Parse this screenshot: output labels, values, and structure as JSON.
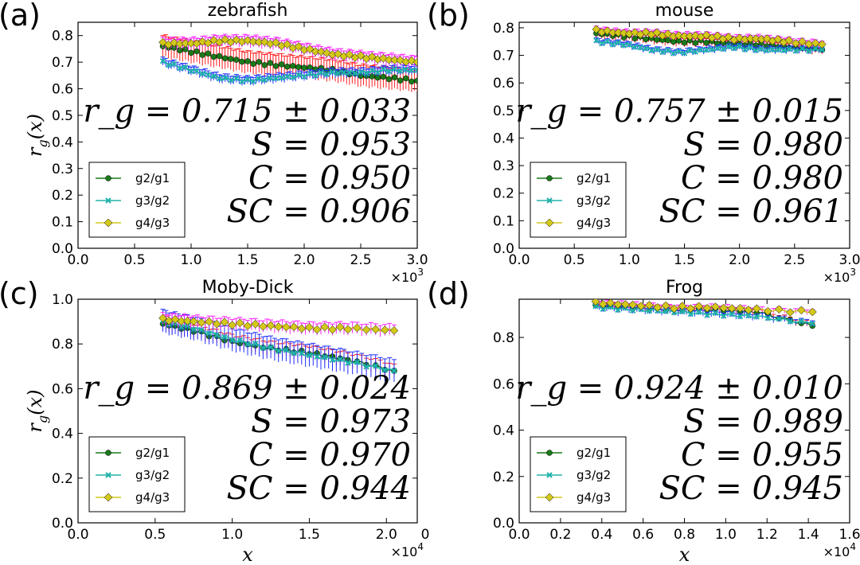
{
  "figure": {
    "colors": {
      "g2_g1": "#1a7a1a",
      "g3_g2": "#20b2aa",
      "g4_g3": "#d4c81a",
      "err_g2_g1": "#ff2020",
      "err_g3_g2": "#2030ff",
      "err_g4_g3": "#ff20ff"
    }
  },
  "chart_data": [
    {
      "type": "line",
      "panel_letter": "(a)",
      "title": "zebrafish",
      "xlabel": "",
      "ylabel": "r_g(x)",
      "ylabel_parts": {
        "base": "r",
        "sub": "g",
        "rest": "(x)"
      },
      "xlim": [
        0.0,
        3.0
      ],
      "ylim": [
        0.0,
        0.85
      ],
      "xticks": [
        0.0,
        0.5,
        1.0,
        1.5,
        2.0,
        2.5,
        3.0
      ],
      "yticks": [
        0.0,
        0.1,
        0.2,
        0.3,
        0.4,
        0.5,
        0.6,
        0.7,
        0.8
      ],
      "tick_decimals_x": 1,
      "tick_decimals_y": 1,
      "x_multiplier": "×10",
      "x_multiplier_exp": "3",
      "stats": {
        "rg": "r_g = 0.715 ± 0.033",
        "S": "S = 0.953",
        "C": "C = 0.950",
        "SC": "SC = 0.906"
      },
      "legend": [
        "g2/g1",
        "g3/g2",
        "g4/g3"
      ],
      "legend_position": "lower-left",
      "series": [
        {
          "name": "g2/g1",
          "x": [
            0.75,
            1.0,
            1.25,
            1.5,
            1.75,
            2.0,
            2.25,
            2.5,
            2.75,
            3.0
          ],
          "y": [
            0.76,
            0.74,
            0.72,
            0.7,
            0.69,
            0.68,
            0.67,
            0.65,
            0.64,
            0.63
          ],
          "err": 0.04
        },
        {
          "name": "g3/g2",
          "x": [
            0.75,
            1.0,
            1.25,
            1.5,
            1.75,
            2.0,
            2.25,
            2.5,
            2.75,
            3.0
          ],
          "y": [
            0.7,
            0.67,
            0.64,
            0.63,
            0.64,
            0.65,
            0.66,
            0.66,
            0.67,
            0.67
          ],
          "err": 0.015
        },
        {
          "name": "g4/g3",
          "x": [
            0.75,
            1.0,
            1.25,
            1.5,
            1.75,
            2.0,
            2.25,
            2.5,
            2.75,
            3.0
          ],
          "y": [
            0.77,
            0.77,
            0.78,
            0.78,
            0.77,
            0.75,
            0.73,
            0.72,
            0.71,
            0.7
          ],
          "err": 0.02
        }
      ]
    },
    {
      "type": "line",
      "panel_letter": "(b)",
      "title": "mouse",
      "xlabel": "",
      "ylabel": "",
      "xlim": [
        0.0,
        3.0
      ],
      "ylim": [
        0.0,
        0.82
      ],
      "xticks": [
        0.0,
        0.5,
        1.0,
        1.5,
        2.0,
        2.5,
        3.0
      ],
      "yticks": [
        0.0,
        0.1,
        0.2,
        0.3,
        0.4,
        0.5,
        0.6,
        0.7,
        0.8
      ],
      "tick_decimals_x": 1,
      "tick_decimals_y": 1,
      "x_multiplier": "×10",
      "x_multiplier_exp": "3",
      "stats": {
        "rg": "r_g = 0.757 ± 0.015",
        "S": "S = 0.980",
        "C": "C = 0.980",
        "SC": "SC = 0.961"
      },
      "legend": [
        "g2/g1",
        "g3/g2",
        "g4/g3"
      ],
      "legend_position": "lower-left",
      "series": [
        {
          "name": "g2/g1",
          "x": [
            0.7,
            0.95,
            1.2,
            1.45,
            1.7,
            1.95,
            2.2,
            2.45,
            2.75
          ],
          "y": [
            0.78,
            0.77,
            0.76,
            0.75,
            0.75,
            0.74,
            0.74,
            0.73,
            0.72
          ],
          "err": 0.015
        },
        {
          "name": "g3/g2",
          "x": [
            0.7,
            0.95,
            1.2,
            1.45,
            1.7,
            1.95,
            2.2,
            2.45,
            2.75
          ],
          "y": [
            0.75,
            0.74,
            0.72,
            0.71,
            0.72,
            0.73,
            0.72,
            0.72,
            0.72
          ],
          "err": 0.01
        },
        {
          "name": "g4/g3",
          "x": [
            0.7,
            0.95,
            1.2,
            1.45,
            1.7,
            1.95,
            2.2,
            2.45,
            2.75
          ],
          "y": [
            0.79,
            0.78,
            0.78,
            0.77,
            0.77,
            0.76,
            0.76,
            0.75,
            0.74
          ],
          "err": 0.012
        }
      ]
    },
    {
      "type": "line",
      "panel_letter": "(c)",
      "title": "Moby-Dick",
      "xlabel": "x",
      "ylabel": "r_g(x)",
      "ylabel_parts": {
        "base": "r",
        "sub": "g",
        "rest": "(x)"
      },
      "xlim": [
        0.0,
        2.2
      ],
      "ylim": [
        0.0,
        1.0
      ],
      "xticks": [
        0.0,
        0.5,
        1.0,
        1.5,
        2.0
      ],
      "xtick_extra_label": "0",
      "yticks": [
        0.0,
        0.2,
        0.4,
        0.6,
        0.8,
        1.0
      ],
      "tick_decimals_x": 1,
      "tick_decimals_y": 1,
      "x_multiplier": "×10",
      "x_multiplier_exp": "4",
      "stats": {
        "rg": "r_g = 0.869 ± 0.024",
        "S": "S = 0.973",
        "C": "C = 0.970",
        "SC": "SC = 0.944"
      },
      "legend": [
        "g2/g1",
        "g3/g2",
        "g4/g3"
      ],
      "legend_position": "lower-left",
      "series": [
        {
          "name": "g2/g1",
          "x": [
            0.55,
            0.75,
            1.0,
            1.25,
            1.5,
            1.75,
            2.05
          ],
          "y": [
            0.89,
            0.86,
            0.81,
            0.78,
            0.76,
            0.73,
            0.68
          ],
          "err": 0.03
        },
        {
          "name": "g3/g2",
          "x": [
            0.55,
            0.75,
            1.0,
            1.25,
            1.5,
            1.75,
            2.05
          ],
          "y": [
            0.9,
            0.87,
            0.82,
            0.78,
            0.75,
            0.72,
            0.68
          ],
          "err": 0.05
        },
        {
          "name": "g4/g3",
          "x": [
            0.55,
            0.75,
            1.0,
            1.25,
            1.5,
            1.75,
            2.05
          ],
          "y": [
            0.91,
            0.9,
            0.89,
            0.88,
            0.87,
            0.87,
            0.86
          ],
          "err": 0.025
        }
      ]
    },
    {
      "type": "line",
      "panel_letter": "(d)",
      "title": "Frog",
      "xlabel": "x",
      "ylabel": "",
      "xlim": [
        0.0,
        1.6
      ],
      "ylim": [
        0.0,
        0.965
      ],
      "xticks": [
        0.0,
        0.2,
        0.4,
        0.6,
        0.8,
        1.0,
        1.2,
        1.4,
        1.6
      ],
      "yticks": [
        0.0,
        0.2,
        0.4,
        0.6,
        0.8
      ],
      "tick_decimals_x": 1,
      "tick_decimals_y": 1,
      "x_multiplier": "×10",
      "x_multiplier_exp": "4",
      "stats": {
        "rg": "r_g = 0.924 ± 0.010",
        "S": "S = 0.989",
        "C": "C = 0.955",
        "SC": "SC = 0.945"
      },
      "legend": [
        "g2/g1",
        "g3/g2",
        "g4/g3"
      ],
      "legend_position": "lower-left",
      "series": [
        {
          "name": "g2/g1",
          "x": [
            0.37,
            0.55,
            0.75,
            0.95,
            1.15,
            1.42
          ],
          "y": [
            0.94,
            0.93,
            0.92,
            0.92,
            0.91,
            0.85
          ],
          "err": 0.012
        },
        {
          "name": "g3/g2",
          "x": [
            0.37,
            0.55,
            0.75,
            0.95,
            1.15,
            1.42
          ],
          "y": [
            0.93,
            0.92,
            0.91,
            0.9,
            0.89,
            0.86
          ],
          "err": 0.012
        },
        {
          "name": "g4/g3",
          "x": [
            0.37,
            0.55,
            0.75,
            0.95,
            1.15,
            1.42
          ],
          "y": [
            0.95,
            0.94,
            0.93,
            0.93,
            0.92,
            0.91
          ],
          "err": 0.01
        }
      ]
    }
  ]
}
